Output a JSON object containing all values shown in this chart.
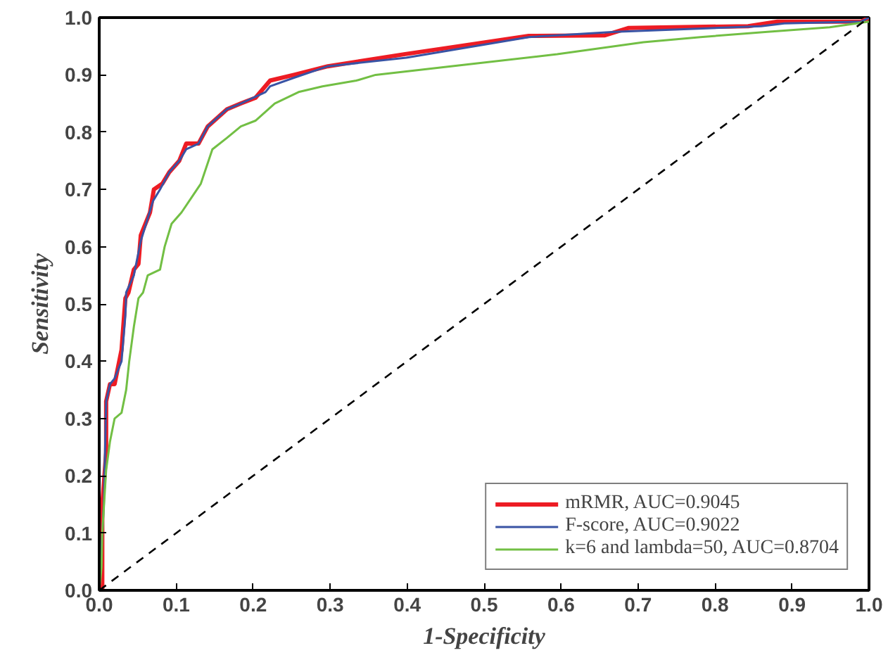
{
  "chart_data": {
    "type": "line",
    "xlabel": "1-Specificity",
    "ylabel": "Sensitivity",
    "xlim": [
      0,
      1
    ],
    "ylim": [
      0,
      1
    ],
    "xticks": [
      {
        "value": 0,
        "label": "0.0"
      },
      0.1,
      0.2,
      0.3,
      0.4,
      0.5,
      0.6,
      0.7,
      0.8,
      0.9,
      {
        "value": 1,
        "label": "1.0"
      }
    ],
    "yticks": [
      {
        "value": 0,
        "label": "0.0"
      },
      0.1,
      0.2,
      0.3,
      0.4,
      0.5,
      0.6,
      0.7,
      0.8,
      0.9,
      {
        "value": 1,
        "label": "1.0"
      }
    ],
    "grid": false,
    "legend": "bottom right",
    "marker": "none",
    "series": [
      {
        "name": "mRMR, AUC=0.9045",
        "color": "#ed1c24",
        "line_style": "solid",
        "x": [
          0,
          0.004,
          0.004,
          0.009,
          0.009,
          0.014,
          0.02,
          0.023,
          0.029,
          0.034,
          0.038,
          0.045,
          0.051,
          0.054,
          0.06,
          0.066,
          0.071,
          0.082,
          0.091,
          0.104,
          0.113,
          0.129,
          0.141,
          0.166,
          0.184,
          0.203,
          0.222,
          0.253,
          0.297,
          0.396,
          0.452,
          0.558,
          0.657,
          0.688,
          0.843,
          0.881,
          0.99,
          1.0
        ],
        "values": [
          0,
          0,
          0.15,
          0.24,
          0.33,
          0.36,
          0.36,
          0.38,
          0.42,
          0.51,
          0.52,
          0.56,
          0.57,
          0.62,
          0.64,
          0.66,
          0.7,
          0.71,
          0.73,
          0.75,
          0.78,
          0.78,
          0.81,
          0.84,
          0.85,
          0.86,
          0.89,
          0.9,
          0.915,
          0.936,
          0.947,
          0.968,
          0.969,
          0.982,
          0.985,
          0.993,
          0.993,
          1.0
        ]
      },
      {
        "name": "F-score, AUC=0.9022",
        "color": "#3953a4",
        "line_style": "solid",
        "x": [
          0,
          0.006,
          0.009,
          0.014,
          0.02,
          0.029,
          0.034,
          0.035,
          0.045,
          0.054,
          0.07,
          0.079,
          0.091,
          0.104,
          0.113,
          0.129,
          0.141,
          0.166,
          0.184,
          0.216,
          0.222,
          0.253,
          0.297,
          0.399,
          0.558,
          0.67,
          0.86,
          0.89,
          0.99,
          1.0
        ],
        "values": [
          0,
          0.15,
          0.33,
          0.36,
          0.37,
          0.4,
          0.48,
          0.52,
          0.55,
          0.61,
          0.68,
          0.7,
          0.73,
          0.75,
          0.77,
          0.78,
          0.81,
          0.84,
          0.85,
          0.87,
          0.88,
          0.895,
          0.915,
          0.93,
          0.966,
          0.975,
          0.985,
          0.99,
          0.993,
          1.0
        ]
      },
      {
        "name": "k=6 and lambda=50, AUC=0.8704",
        "color": "#72bf44",
        "line_style": "solid",
        "x": [
          0,
          0.003,
          0.004,
          0.009,
          0.014,
          0.02,
          0.029,
          0.035,
          0.039,
          0.045,
          0.051,
          0.057,
          0.063,
          0.079,
          0.085,
          0.094,
          0.107,
          0.122,
          0.132,
          0.147,
          0.166,
          0.184,
          0.203,
          0.228,
          0.259,
          0.29,
          0.334,
          0.359,
          0.471,
          0.595,
          0.707,
          0.781,
          0.868,
          0.949,
          1.0
        ],
        "values": [
          0,
          0.04,
          0.1,
          0.21,
          0.26,
          0.3,
          0.31,
          0.35,
          0.4,
          0.46,
          0.51,
          0.52,
          0.55,
          0.56,
          0.6,
          0.64,
          0.66,
          0.69,
          0.71,
          0.77,
          0.79,
          0.81,
          0.82,
          0.85,
          0.87,
          0.88,
          0.89,
          0.9,
          0.917,
          0.936,
          0.957,
          0.966,
          0.975,
          0.983,
          0.993
        ]
      },
      {
        "color": "#000000",
        "line_style": "dashed",
        "x": [
          0,
          1
        ],
        "values": [
          0,
          1
        ]
      }
    ]
  }
}
